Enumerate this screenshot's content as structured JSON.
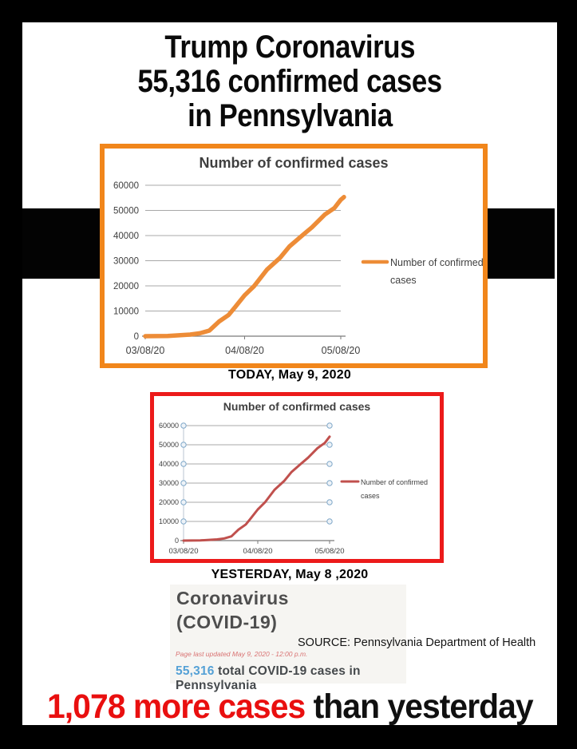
{
  "page": {
    "title_lines": [
      "Trump Coronavirus",
      "55,316 confirmed cases",
      "in Pennsylvania"
    ],
    "today_label": "TODAY, May 9, 2020",
    "yesterday_label": "YESTERDAY, May 8 ,2020",
    "source_label": "SOURCE: Pennsylvania Department of Health",
    "headline_red": "1,078 more cases",
    "headline_black": " than yesterday"
  },
  "web_snippet": {
    "heading_line1": "Coronavirus",
    "heading_line2": "(COVID-19)",
    "updated_note": "Page last updated May 9, 2020 - 12:00 p.m.",
    "total_highlight": "55,316",
    "total_rest": " total COVID-19 cases in Pennsylvania"
  },
  "colors": {
    "frame": "#000000",
    "today_border": "#F1861B",
    "today_line": "#ED8C37",
    "yesterday_border": "#EC1A1A",
    "yesterday_line": "#C0504D",
    "handle_stroke": "#7fa8c9",
    "headline_red": "#e90f0f",
    "total_blue": "#55a1d6"
  },
  "chart_data": [
    {
      "type": "line",
      "panel": "today",
      "title": "Number of confirmed cases",
      "legend": [
        "Number of confirmed",
        "cases"
      ],
      "legend_position": "right",
      "grid": true,
      "line_color": "#ED8C37",
      "ylim": [
        0,
        60000
      ],
      "y_ticks": [
        0,
        10000,
        20000,
        30000,
        40000,
        50000,
        60000
      ],
      "x_ticks": [
        "03/08/20",
        "04/08/20",
        "05/08/20"
      ],
      "endpoint_handles": false,
      "points": [
        [
          "03/08/20",
          0
        ],
        [
          "03/15/20",
          76
        ],
        [
          "03/22/20",
          644
        ],
        [
          "03/25/20",
          1127
        ],
        [
          "03/28/20",
          2218
        ],
        [
          "03/31/20",
          5805
        ],
        [
          "04/03/20",
          8420
        ],
        [
          "04/05/20",
          11510
        ],
        [
          "04/08/20",
          16239
        ],
        [
          "04/11/20",
          19979
        ],
        [
          "04/15/20",
          26490
        ],
        [
          "04/19/20",
          31069
        ],
        [
          "04/22/20",
          35684
        ],
        [
          "04/26/20",
          40049
        ],
        [
          "04/29/20",
          43264
        ],
        [
          "05/03/20",
          48305
        ],
        [
          "05/05/20",
          50092
        ],
        [
          "05/06/20",
          50957
        ],
        [
          "05/08/20",
          54238
        ],
        [
          "05/09/20",
          55316
        ]
      ]
    },
    {
      "type": "line",
      "panel": "yesterday",
      "title": "Number of confirmed cases",
      "legend": [
        "Number of confirmed",
        "cases"
      ],
      "legend_position": "right",
      "grid": true,
      "line_color": "#C0504D",
      "ylim": [
        0,
        60000
      ],
      "y_ticks": [
        0,
        10000,
        20000,
        30000,
        40000,
        50000,
        60000
      ],
      "x_ticks": [
        "03/08/20",
        "04/08/20",
        "05/08/20"
      ],
      "endpoint_handles": true,
      "points": [
        [
          "03/08/20",
          0
        ],
        [
          "03/15/20",
          76
        ],
        [
          "03/22/20",
          644
        ],
        [
          "03/25/20",
          1127
        ],
        [
          "03/28/20",
          2218
        ],
        [
          "03/31/20",
          5805
        ],
        [
          "04/03/20",
          8420
        ],
        [
          "04/05/20",
          11510
        ],
        [
          "04/08/20",
          16239
        ],
        [
          "04/11/20",
          19979
        ],
        [
          "04/15/20",
          26490
        ],
        [
          "04/19/20",
          31069
        ],
        [
          "04/22/20",
          35684
        ],
        [
          "04/26/20",
          40049
        ],
        [
          "04/29/20",
          43264
        ],
        [
          "05/03/20",
          48305
        ],
        [
          "05/05/20",
          50092
        ],
        [
          "05/06/20",
          50957
        ],
        [
          "05/08/20",
          54238
        ]
      ]
    }
  ]
}
